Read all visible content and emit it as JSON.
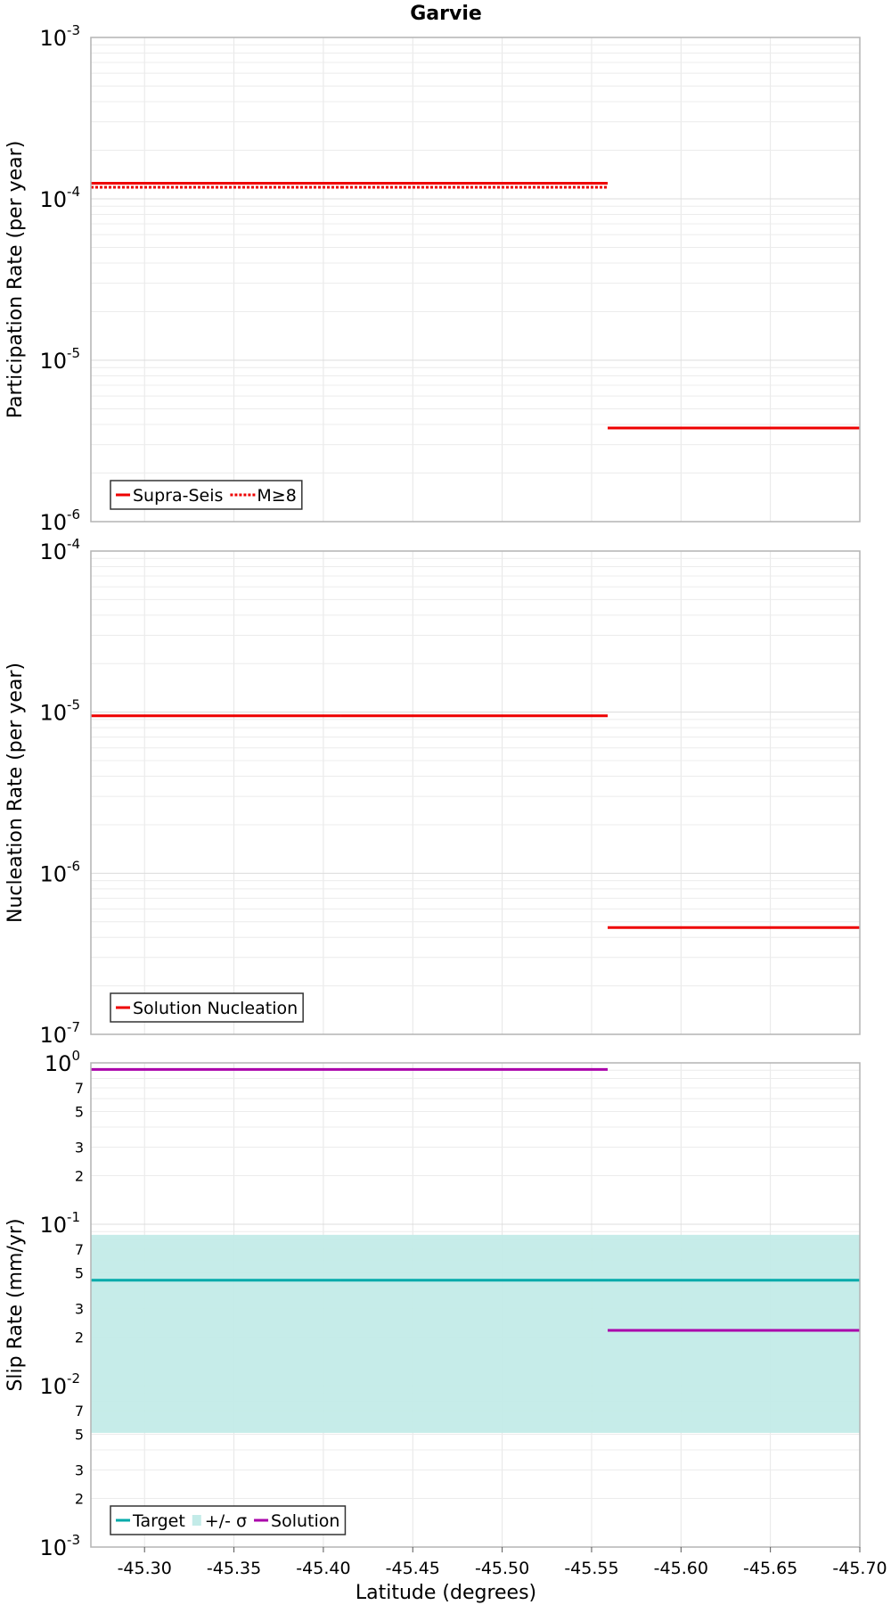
{
  "chart_data": [
    {
      "type": "line",
      "title": "Garvie",
      "ylabel": "Participation Rate (per year)",
      "xlabel": "",
      "yscale": "log",
      "ylim": [
        1e-06,
        0.001
      ],
      "xlim": [
        -45.27,
        -45.7
      ],
      "ytick_labels": [
        {
          "base": "10",
          "exp": "-6",
          "value": 1e-06
        },
        {
          "base": "10",
          "exp": "-5",
          "value": 1e-05
        },
        {
          "base": "10",
          "exp": "-4",
          "value": 0.0001
        },
        {
          "base": "10",
          "exp": "-3",
          "value": 0.001
        }
      ],
      "grid": true,
      "legend": {
        "position": "bottom-left",
        "entries": [
          {
            "label": "Supra-Seis",
            "style": "solid",
            "color": "#ee0000"
          },
          {
            "label": "M≥8",
            "style": "dotted",
            "color": "#ee0000"
          }
        ]
      },
      "series": [
        {
          "name": "Supra-Seis",
          "style": "solid",
          "color": "#ee0000",
          "segments": [
            {
              "x": [
                -45.27,
                -45.41
              ],
              "y": 0.000125
            },
            {
              "x": [
                -45.41,
                -45.559
              ],
              "y": 0.000125
            },
            {
              "x": [
                -45.559,
                -45.7
              ],
              "y": 3.8e-06
            }
          ]
        },
        {
          "name": "M≥8",
          "style": "dotted",
          "color": "#ee0000",
          "segments": [
            {
              "x": [
                -45.27,
                -45.41
              ],
              "y": 0.000118
            },
            {
              "x": [
                -45.41,
                -45.559
              ],
              "y": 0.000118
            }
          ]
        }
      ]
    },
    {
      "type": "line",
      "title": "",
      "ylabel": "Nucleation Rate (per year)",
      "xlabel": "",
      "yscale": "log",
      "ylim": [
        1e-07,
        0.0001
      ],
      "xlim": [
        -45.27,
        -45.7
      ],
      "ytick_labels": [
        {
          "base": "10",
          "exp": "-7",
          "value": 1e-07
        },
        {
          "base": "10",
          "exp": "-6",
          "value": 1e-06
        },
        {
          "base": "10",
          "exp": "-5",
          "value": 1e-05
        },
        {
          "base": "10",
          "exp": "-4",
          "value": 0.0001
        }
      ],
      "grid": true,
      "legend": {
        "position": "bottom-left",
        "entries": [
          {
            "label": "Solution Nucleation",
            "style": "solid",
            "color": "#ee0000"
          }
        ]
      },
      "series": [
        {
          "name": "Solution Nucleation",
          "style": "solid",
          "color": "#ee0000",
          "segments": [
            {
              "x": [
                -45.27,
                -45.41
              ],
              "y": 9.5e-06
            },
            {
              "x": [
                -45.41,
                -45.559
              ],
              "y": 9.5e-06
            },
            {
              "x": [
                -45.559,
                -45.7
              ],
              "y": 4.6e-07
            }
          ]
        }
      ]
    },
    {
      "type": "line",
      "title": "",
      "ylabel": "Slip Rate (mm/yr)",
      "xlabel": "Latitude (degrees)",
      "yscale": "log",
      "ylim": [
        0.001,
        1
      ],
      "xlim": [
        -45.27,
        -45.7
      ],
      "ytick_labels": [
        {
          "base": "10",
          "exp": "-3",
          "value": 0.001
        },
        {
          "base": "10",
          "exp": "-2",
          "value": 0.01
        },
        {
          "base": "10",
          "exp": "-1",
          "value": 0.1
        },
        {
          "base": "10",
          "exp": "0",
          "value": 1
        }
      ],
      "minor_tick_labels": [
        {
          "label": "2",
          "value": 0.002
        },
        {
          "label": "3",
          "value": 0.003
        },
        {
          "label": "5",
          "value": 0.005
        },
        {
          "label": "7",
          "value": 0.007
        },
        {
          "label": "2",
          "value": 0.02
        },
        {
          "label": "3",
          "value": 0.03
        },
        {
          "label": "5",
          "value": 0.05
        },
        {
          "label": "7",
          "value": 0.07
        },
        {
          "label": "2",
          "value": 0.2
        },
        {
          "label": "3",
          "value": 0.3
        },
        {
          "label": "5",
          "value": 0.5
        },
        {
          "label": "7",
          "value": 0.7
        }
      ],
      "x_tick_labels": [
        "-45.30",
        "-45.35",
        "-45.40",
        "-45.45",
        "-45.50",
        "-45.55",
        "-45.60",
        "-45.65",
        "-45.70"
      ],
      "x_tick_values": [
        -45.3,
        -45.35,
        -45.4,
        -45.45,
        -45.5,
        -45.55,
        -45.6,
        -45.65,
        -45.7
      ],
      "grid": true,
      "legend": {
        "position": "bottom-left",
        "entries": [
          {
            "label": "Target",
            "style": "solid",
            "color": "#00aaaa"
          },
          {
            "label": "+/- σ",
            "style": "band",
            "color": "#c3ebe8"
          },
          {
            "label": "Solution",
            "style": "solid",
            "color": "#aa00aa"
          }
        ]
      },
      "band": {
        "name": "+/- σ",
        "x": [
          -45.27,
          -45.7
        ],
        "y_low": 0.0051,
        "y_high": 0.086,
        "color": "#c3ebe8"
      },
      "series": [
        {
          "name": "Target",
          "style": "solid",
          "color": "#00aaaa",
          "segments": [
            {
              "x": [
                -45.27,
                -45.41
              ],
              "y": 0.045
            },
            {
              "x": [
                -45.41,
                -45.559
              ],
              "y": 0.045
            },
            {
              "x": [
                -45.559,
                -45.7
              ],
              "y": 0.045
            }
          ]
        },
        {
          "name": "Solution",
          "style": "solid",
          "color": "#aa00aa",
          "segments": [
            {
              "x": [
                -45.27,
                -45.41
              ],
              "y": 0.91
            },
            {
              "x": [
                -45.41,
                -45.559
              ],
              "y": 0.91
            },
            {
              "x": [
                -45.559,
                -45.7
              ],
              "y": 0.022
            }
          ]
        }
      ]
    }
  ]
}
